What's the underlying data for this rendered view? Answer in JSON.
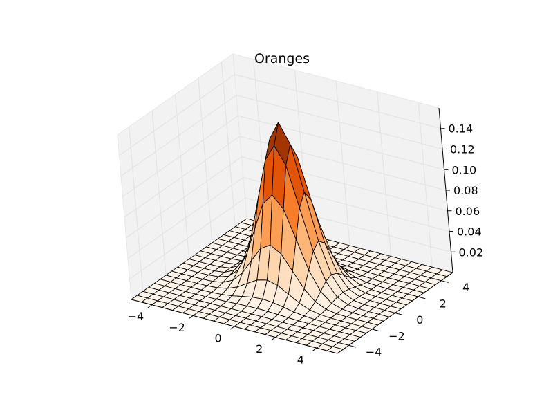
{
  "chart_data": {
    "type": "surface",
    "title": "Oranges",
    "colormap": "Oranges",
    "function": "exp(-(x^2+y^2)/2) / (2*pi*sigma^2)",
    "x": {
      "range": [
        -5,
        5
      ],
      "ticks": [
        -4,
        -2,
        0,
        2,
        4
      ],
      "tick_labels": [
        "−4",
        "−2",
        "0",
        "2",
        "4"
      ]
    },
    "y": {
      "range": [
        -5,
        5
      ],
      "ticks": [
        -4,
        -2,
        0,
        2,
        4
      ],
      "tick_labels": [
        "−4",
        "−2",
        "0",
        "2",
        "4"
      ]
    },
    "z": {
      "range": [
        0,
        0.16
      ],
      "ticks": [
        0.02,
        0.04,
        0.06,
        0.08,
        0.1,
        0.12,
        0.14
      ],
      "tick_labels": [
        "0.02",
        "0.04",
        "0.06",
        "0.08",
        "0.10",
        "0.12",
        "0.14"
      ]
    },
    "peak": {
      "x": 0,
      "y": 0,
      "z": 0.159
    },
    "grid_resolution": 21,
    "grid": true,
    "pane_color": "#f2f2f2",
    "edge_color": "#000000"
  }
}
